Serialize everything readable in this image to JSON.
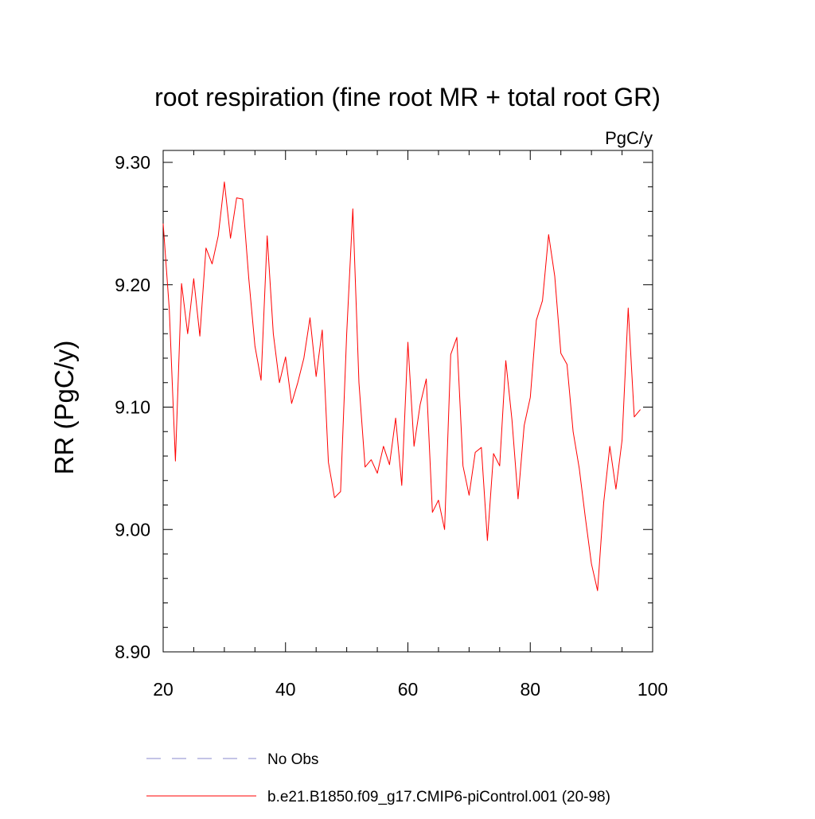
{
  "chart_data": {
    "type": "line",
    "title": "root respiration (fine root MR + total root GR)",
    "units_label": "PgC/y",
    "ylabel": "RR  (PgC/y)",
    "xlabel": "",
    "xlim": [
      20,
      100
    ],
    "ylim": [
      8.9,
      9.3
    ],
    "x_ticks": [
      20,
      40,
      60,
      80,
      100
    ],
    "x_tick_labels": [
      "20",
      "40",
      "60",
      "80",
      "100"
    ],
    "y_ticks": [
      8.9,
      9.0,
      9.1,
      9.2,
      9.3
    ],
    "y_tick_labels": [
      "8.90",
      "9.00",
      "9.10",
      "9.20",
      "9.30"
    ],
    "grid": false,
    "series": [
      {
        "name": "b.e21.B1850.f09_g17.CMIP6-piControl.001 (20-98)",
        "color": "#ff0000",
        "style": "solid",
        "x": [
          20,
          21,
          22,
          23,
          24,
          25,
          26,
          27,
          28,
          29,
          30,
          31,
          32,
          33,
          34,
          35,
          36,
          37,
          38,
          39,
          40,
          41,
          42,
          43,
          44,
          45,
          46,
          47,
          48,
          49,
          50,
          51,
          52,
          53,
          54,
          55,
          56,
          57,
          58,
          59,
          60,
          61,
          62,
          63,
          64,
          65,
          66,
          67,
          68,
          69,
          70,
          71,
          72,
          73,
          74,
          75,
          76,
          77,
          78,
          79,
          80,
          81,
          82,
          83,
          84,
          85,
          86,
          87,
          88,
          89,
          90,
          91,
          92,
          93,
          94,
          95,
          96,
          97,
          98
        ],
        "values": [
          9.25,
          9.18,
          9.056,
          9.201,
          9.16,
          9.205,
          9.158,
          9.23,
          9.217,
          9.24,
          9.284,
          9.238,
          9.271,
          9.27,
          9.205,
          9.15,
          9.122,
          9.24,
          9.16,
          9.12,
          9.141,
          9.103,
          9.12,
          9.14,
          9.173,
          9.125,
          9.163,
          9.055,
          9.026,
          9.031,
          9.16,
          9.262,
          9.12,
          9.051,
          9.057,
          9.046,
          9.068,
          9.053,
          9.091,
          9.036,
          9.153,
          9.068,
          9.102,
          9.123,
          9.014,
          9.024,
          9.0,
          9.143,
          9.157,
          9.052,
          9.028,
          9.063,
          9.067,
          8.991,
          9.062,
          9.052,
          9.138,
          9.09,
          9.025,
          9.085,
          9.108,
          9.171,
          9.187,
          9.241,
          9.207,
          9.144,
          9.135,
          9.08,
          9.05,
          9.01,
          8.972,
          8.95,
          9.022,
          9.068,
          9.033,
          9.073,
          9.181,
          9.092,
          9.098
        ]
      },
      {
        "name": "No Obs",
        "color": "#8888cc",
        "style": "dashed",
        "x": [],
        "values": []
      }
    ]
  },
  "legend": [
    {
      "label": "No Obs",
      "color": "#8888cc",
      "style": "dashed"
    },
    {
      "label": "b.e21.B1850.f09_g17.CMIP6-piControl.001 (20-98)",
      "color": "#ff0000",
      "style": "solid"
    }
  ]
}
